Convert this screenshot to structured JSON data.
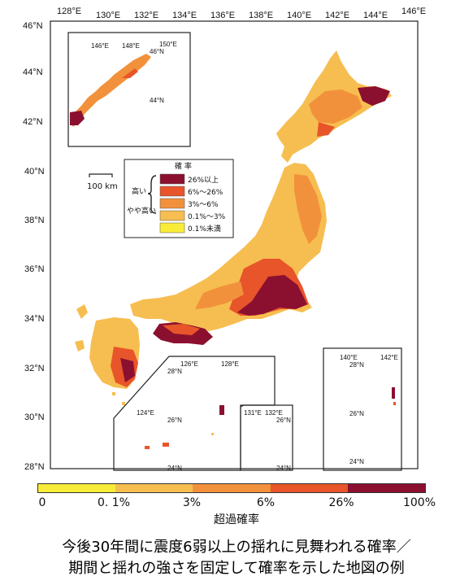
{
  "axes": {
    "lon_labels": [
      "128°E",
      "130°E",
      "132°E",
      "134°E",
      "136°E",
      "138°E",
      "140°E",
      "142°E",
      "144°E",
      "146°E"
    ],
    "lat_labels": [
      "46°N",
      "44°N",
      "42°N",
      "40°N",
      "38°N",
      "36°N",
      "34°N",
      "32°N",
      "30°N",
      "28°N"
    ]
  },
  "insets": {
    "north": {
      "lon_labels": [
        "146°E",
        "148°E",
        "150°E"
      ],
      "lat_labels": [
        "46°N",
        "44°N"
      ]
    },
    "south_ryukyu": {
      "lon_labels": [
        "126°E",
        "128°E",
        "124°E"
      ],
      "lat_labels": [
        "28°N",
        "26°N",
        "24°N"
      ]
    },
    "small": {
      "lon_labels": [
        "131°E",
        "132°E"
      ],
      "lat_labels": [
        "26°N",
        "24°N"
      ]
    },
    "ogasawara": {
      "lon_labels": [
        "140°E",
        "142°E"
      ],
      "lat_labels": [
        "28°N",
        "26°N",
        "24°N"
      ]
    }
  },
  "scale_bar": {
    "label": "100 km"
  },
  "legend": {
    "title": "確 率",
    "group_high": "高い",
    "group_somewhat_high": "やや高い",
    "items": [
      {
        "label": "26%以上",
        "color": "#8b1030"
      },
      {
        "label": "6%～26%",
        "color": "#e8552a"
      },
      {
        "label": "3%～6%",
        "color": "#f2913c"
      },
      {
        "label": "0.1%～3%",
        "color": "#f6be50"
      },
      {
        "label": "0.1%未満",
        "color": "#f8ec38"
      }
    ]
  },
  "colorbar": {
    "segments": [
      {
        "color": "#f8ec38",
        "flex": 1
      },
      {
        "color": "#f6be50",
        "flex": 1
      },
      {
        "color": "#f2913c",
        "flex": 1
      },
      {
        "color": "#e8552a",
        "flex": 1
      },
      {
        "color": "#8b1030",
        "flex": 1
      }
    ],
    "labels": [
      "0",
      "0. 1%",
      "3%",
      "6%",
      "26%",
      "100%"
    ],
    "title": "超過確率"
  },
  "caption": {
    "line1": "今後30年間に震度6弱以上の揺れに見舞われる確率／",
    "line2": "期間と揺れの強さを固定して確率を示した地図の例"
  }
}
